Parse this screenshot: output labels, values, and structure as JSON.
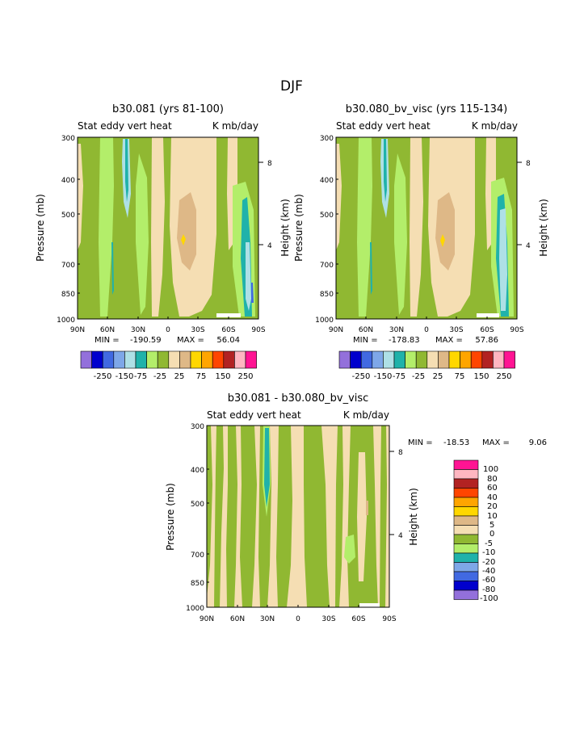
{
  "page": {
    "title": "DJF"
  },
  "chart_data": [
    {
      "type": "heatmap",
      "title": "b30.081 (yrs 81-100)",
      "subtitle_left": "Stat eddy vert heat",
      "subtitle_right": "K mb/day",
      "xlabel": "",
      "ylabel": "Pressure (mb)",
      "ylabel_right": "Height (km)",
      "x_ticks": [
        "90N",
        "60N",
        "30N",
        "0",
        "30S",
        "60S",
        "90S"
      ],
      "y_ticks": [
        "300",
        "400",
        "500",
        "700",
        "850",
        "1000"
      ],
      "y_right_ticks": [
        "8",
        "4"
      ],
      "stats": {
        "min_label": "MIN =",
        "min": "-190.59",
        "max_label": "MAX =",
        "max": "56.04"
      },
      "colorbar": {
        "orientation": "horizontal",
        "labels": [
          "-250",
          "-150",
          "-75",
          "-25",
          "25",
          "75",
          "150",
          "250"
        ],
        "colors": [
          "#9370db",
          "#0000cd",
          "#4169e1",
          "#7ea7e8",
          "#aee0e6",
          "#20b2aa",
          "#b3ee6a",
          "#90b832",
          "#f5deb3",
          "#deb887",
          "#ffd700",
          "#ffa500",
          "#ff4500",
          "#b22222",
          "#ffb6c1",
          "#ff1493"
        ]
      }
    },
    {
      "type": "heatmap",
      "title": "b30.080_bv_visc (yrs 115-134)",
      "subtitle_left": "Stat eddy vert heat",
      "subtitle_right": "K mb/day",
      "xlabel": "",
      "ylabel": "Pressure (mb)",
      "ylabel_right": "Height (km)",
      "x_ticks": [
        "90N",
        "60N",
        "30N",
        "0",
        "30S",
        "60S",
        "90S"
      ],
      "y_ticks": [
        "300",
        "400",
        "500",
        "700",
        "850",
        "1000"
      ],
      "y_right_ticks": [
        "8",
        "4"
      ],
      "stats": {
        "min_label": "MIN =",
        "min": "-178.83",
        "max_label": "MAX =",
        "max": "57.86"
      },
      "colorbar": {
        "orientation": "horizontal",
        "labels": [
          "-250",
          "-150",
          "-75",
          "-25",
          "25",
          "75",
          "150",
          "250"
        ],
        "colors": [
          "#9370db",
          "#0000cd",
          "#4169e1",
          "#7ea7e8",
          "#aee0e6",
          "#20b2aa",
          "#b3ee6a",
          "#90b832",
          "#f5deb3",
          "#deb887",
          "#ffd700",
          "#ffa500",
          "#ff4500",
          "#b22222",
          "#ffb6c1",
          "#ff1493"
        ]
      }
    },
    {
      "type": "heatmap",
      "title": "b30.081 - b30.080_bv_visc",
      "subtitle_left": "Stat eddy vert heat",
      "subtitle_right": "K mb/day",
      "xlabel": "",
      "ylabel": "Pressure (mb)",
      "ylabel_right": "Height (km)",
      "x_ticks": [
        "90N",
        "60N",
        "30N",
        "0",
        "30S",
        "60S",
        "90S"
      ],
      "y_ticks": [
        "300",
        "400",
        "500",
        "700",
        "850",
        "1000"
      ],
      "y_right_ticks": [
        "8",
        "4"
      ],
      "stats": {
        "min_label": "MIN =",
        "min": "-18.53",
        "max_label": "MAX =",
        "max": "9.06"
      },
      "colorbar": {
        "orientation": "vertical",
        "labels": [
          "100",
          "80",
          "60",
          "40",
          "20",
          "10",
          "5",
          "0",
          "-5",
          "-10",
          "-20",
          "-40",
          "-60",
          "-80",
          "-100"
        ],
        "colors": [
          "#ff1493",
          "#ffb6c1",
          "#b22222",
          "#ff4500",
          "#ffa500",
          "#ffd700",
          "#deb887",
          "#f5deb3",
          "#90b832",
          "#b3ee6a",
          "#20b2aa",
          "#7ea7e8",
          "#4169e1",
          "#0000cd",
          "#9370db"
        ]
      }
    }
  ]
}
